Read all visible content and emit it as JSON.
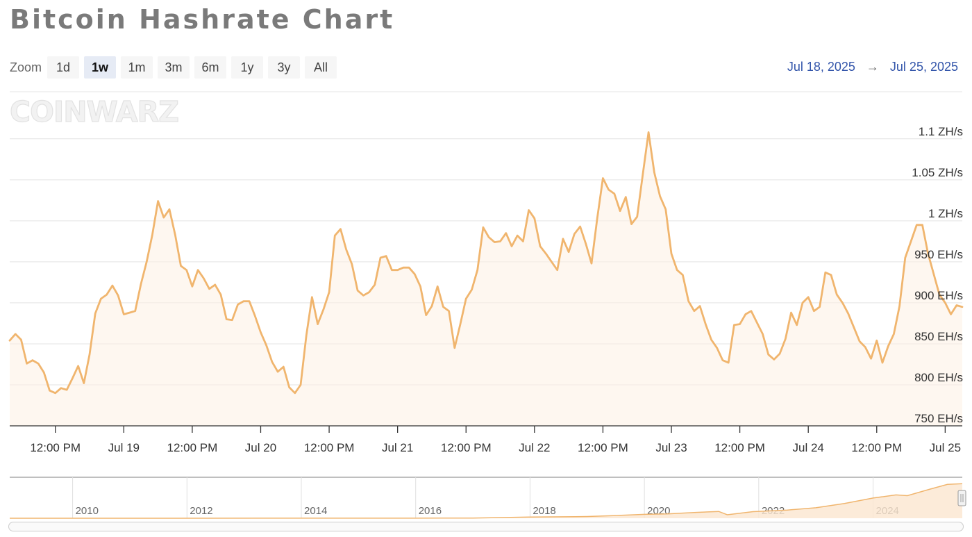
{
  "title": "Bitcoin Hashrate Chart",
  "zoom": {
    "label": "Zoom",
    "buttons": [
      "1d",
      "1w",
      "1m",
      "3m",
      "6m",
      "1y",
      "3y",
      "All"
    ],
    "active": "1w"
  },
  "range": {
    "from": "Jul 18, 2025",
    "arrow": "→",
    "to": "Jul 25, 2025"
  },
  "watermark": "COINWARZ",
  "colors": {
    "line": "#f0b56e",
    "fill": "#fdf0e3",
    "accent": "#3355aa"
  },
  "chart_data": {
    "type": "area",
    "title": "Bitcoin Hashrate Chart",
    "y_unit": "EH/s",
    "ylim": [
      750,
      1110
    ],
    "y_ticks": [
      {
        "value": 750,
        "label": "750 EH/s"
      },
      {
        "value": 800,
        "label": "800 EH/s"
      },
      {
        "value": 850,
        "label": "850 EH/s"
      },
      {
        "value": 900,
        "label": "900 EH/s"
      },
      {
        "value": 950,
        "label": "950 EH/s"
      },
      {
        "value": 1000,
        "label": "1 ZH/s"
      },
      {
        "value": 1050,
        "label": "1.05 ZH/s"
      },
      {
        "value": 1100,
        "label": "1.1 ZH/s"
      }
    ],
    "x_range": [
      "2025-07-18T04:00",
      "2025-07-25T03:00"
    ],
    "x_ticks": [
      {
        "t": "2025-07-18T12:00",
        "label": "12:00 PM"
      },
      {
        "t": "2025-07-19T00:00",
        "label": "Jul 19"
      },
      {
        "t": "2025-07-19T12:00",
        "label": "12:00 PM"
      },
      {
        "t": "2025-07-20T00:00",
        "label": "Jul 20"
      },
      {
        "t": "2025-07-20T12:00",
        "label": "12:00 PM"
      },
      {
        "t": "2025-07-21T00:00",
        "label": "Jul 21"
      },
      {
        "t": "2025-07-21T12:00",
        "label": "12:00 PM"
      },
      {
        "t": "2025-07-22T00:00",
        "label": "Jul 22"
      },
      {
        "t": "2025-07-22T12:00",
        "label": "12:00 PM"
      },
      {
        "t": "2025-07-23T00:00",
        "label": "Jul 23"
      },
      {
        "t": "2025-07-23T12:00",
        "label": "12:00 PM"
      },
      {
        "t": "2025-07-24T00:00",
        "label": "Jul 24"
      },
      {
        "t": "2025-07-24T12:00",
        "label": "12:00 PM"
      },
      {
        "t": "2025-07-25T00:00",
        "label": "Jul 25"
      }
    ],
    "series": [
      {
        "values": [
          [
            "2025-07-18T04:00",
            854
          ],
          [
            "2025-07-18T05:00",
            862
          ],
          [
            "2025-07-18T06:00",
            855
          ],
          [
            "2025-07-18T07:00",
            826
          ],
          [
            "2025-07-18T08:00",
            830
          ],
          [
            "2025-07-18T09:00",
            826
          ],
          [
            "2025-07-18T10:00",
            815
          ],
          [
            "2025-07-18T11:00",
            793
          ],
          [
            "2025-07-18T12:00",
            790
          ],
          [
            "2025-07-18T13:00",
            796
          ],
          [
            "2025-07-18T14:00",
            794
          ],
          [
            "2025-07-18T15:00",
            808
          ],
          [
            "2025-07-18T16:00",
            823
          ],
          [
            "2025-07-18T17:00",
            802
          ],
          [
            "2025-07-18T18:00",
            837
          ],
          [
            "2025-07-18T19:00",
            887
          ],
          [
            "2025-07-18T20:00",
            905
          ],
          [
            "2025-07-18T21:00",
            910
          ],
          [
            "2025-07-18T22:00",
            921
          ],
          [
            "2025-07-18T23:00",
            909
          ],
          [
            "2025-07-19T00:00",
            886
          ],
          [
            "2025-07-19T01:00",
            888
          ],
          [
            "2025-07-19T02:00",
            890
          ],
          [
            "2025-07-19T03:00",
            923
          ],
          [
            "2025-07-19T04:00",
            950
          ],
          [
            "2025-07-19T05:00",
            983
          ],
          [
            "2025-07-19T06:00",
            1024
          ],
          [
            "2025-07-19T07:00",
            1004
          ],
          [
            "2025-07-19T08:00",
            1014
          ],
          [
            "2025-07-19T09:00",
            983
          ],
          [
            "2025-07-19T10:00",
            945
          ],
          [
            "2025-07-19T11:00",
            940
          ],
          [
            "2025-07-19T12:00",
            920
          ],
          [
            "2025-07-19T13:00",
            940
          ],
          [
            "2025-07-19T14:00",
            930
          ],
          [
            "2025-07-19T15:00",
            917
          ],
          [
            "2025-07-19T16:00",
            922
          ],
          [
            "2025-07-19T17:00",
            910
          ],
          [
            "2025-07-19T18:00",
            880
          ],
          [
            "2025-07-19T19:00",
            879
          ],
          [
            "2025-07-19T20:00",
            898
          ],
          [
            "2025-07-19T21:00",
            902
          ],
          [
            "2025-07-19T22:00",
            902
          ],
          [
            "2025-07-19T23:00",
            884
          ],
          [
            "2025-07-20T00:00",
            864
          ],
          [
            "2025-07-20T01:00",
            848
          ],
          [
            "2025-07-20T02:00",
            828
          ],
          [
            "2025-07-20T03:00",
            816
          ],
          [
            "2025-07-20T04:00",
            822
          ],
          [
            "2025-07-20T05:00",
            797
          ],
          [
            "2025-07-20T06:00",
            790
          ],
          [
            "2025-07-20T07:00",
            800
          ],
          [
            "2025-07-20T08:00",
            860
          ],
          [
            "2025-07-20T09:00",
            907
          ],
          [
            "2025-07-20T10:00",
            874
          ],
          [
            "2025-07-20T11:00",
            892
          ],
          [
            "2025-07-20T12:00",
            913
          ],
          [
            "2025-07-20T13:00",
            982
          ],
          [
            "2025-07-20T14:00",
            990
          ],
          [
            "2025-07-20T15:00",
            965
          ],
          [
            "2025-07-20T16:00",
            947
          ],
          [
            "2025-07-20T17:00",
            915
          ],
          [
            "2025-07-20T18:00",
            909
          ],
          [
            "2025-07-20T19:00",
            913
          ],
          [
            "2025-07-20T20:00",
            922
          ],
          [
            "2025-07-20T21:00",
            955
          ],
          [
            "2025-07-20T22:00",
            957
          ],
          [
            "2025-07-20T23:00",
            940
          ],
          [
            "2025-07-21T00:00",
            940
          ],
          [
            "2025-07-21T01:00",
            943
          ],
          [
            "2025-07-21T02:00",
            943
          ],
          [
            "2025-07-21T03:00",
            935
          ],
          [
            "2025-07-21T04:00",
            920
          ],
          [
            "2025-07-21T05:00",
            885
          ],
          [
            "2025-07-21T06:00",
            896
          ],
          [
            "2025-07-21T07:00",
            920
          ],
          [
            "2025-07-21T08:00",
            895
          ],
          [
            "2025-07-21T09:00",
            890
          ],
          [
            "2025-07-21T10:00",
            845
          ],
          [
            "2025-07-21T11:00",
            874
          ],
          [
            "2025-07-21T12:00",
            905
          ],
          [
            "2025-07-21T13:00",
            916
          ],
          [
            "2025-07-21T14:00",
            940
          ],
          [
            "2025-07-21T15:00",
            992
          ],
          [
            "2025-07-21T16:00",
            980
          ],
          [
            "2025-07-21T17:00",
            974
          ],
          [
            "2025-07-21T18:00",
            975
          ],
          [
            "2025-07-21T19:00",
            985
          ],
          [
            "2025-07-21T20:00",
            969
          ],
          [
            "2025-07-21T21:00",
            982
          ],
          [
            "2025-07-21T22:00",
            975
          ],
          [
            "2025-07-21T23:00",
            1013
          ],
          [
            "2025-07-22T00:00",
            1003
          ],
          [
            "2025-07-22T01:00",
            969
          ],
          [
            "2025-07-22T02:00",
            960
          ],
          [
            "2025-07-22T03:00",
            950
          ],
          [
            "2025-07-22T04:00",
            940
          ],
          [
            "2025-07-22T05:00",
            978
          ],
          [
            "2025-07-22T06:00",
            962
          ],
          [
            "2025-07-22T07:00",
            984
          ],
          [
            "2025-07-22T08:00",
            993
          ],
          [
            "2025-07-22T09:00",
            972
          ],
          [
            "2025-07-22T10:00",
            948
          ],
          [
            "2025-07-22T11:00",
            1003
          ],
          [
            "2025-07-22T12:00",
            1052
          ],
          [
            "2025-07-22T13:00",
            1038
          ],
          [
            "2025-07-22T14:00",
            1033
          ],
          [
            "2025-07-22T15:00",
            1012
          ],
          [
            "2025-07-22T16:00",
            1029
          ],
          [
            "2025-07-22T17:00",
            996
          ],
          [
            "2025-07-22T18:00",
            1005
          ],
          [
            "2025-07-22T19:00",
            1057
          ],
          [
            "2025-07-22T20:00",
            1108
          ],
          [
            "2025-07-22T21:00",
            1059
          ],
          [
            "2025-07-22T22:00",
            1030
          ],
          [
            "2025-07-22T23:00",
            1014
          ],
          [
            "2025-07-23T00:00",
            960
          ],
          [
            "2025-07-23T01:00",
            940
          ],
          [
            "2025-07-23T02:00",
            934
          ],
          [
            "2025-07-23T03:00",
            902
          ],
          [
            "2025-07-23T04:00",
            890
          ],
          [
            "2025-07-23T05:00",
            896
          ],
          [
            "2025-07-23T06:00",
            874
          ],
          [
            "2025-07-23T07:00",
            855
          ],
          [
            "2025-07-23T08:00",
            845
          ],
          [
            "2025-07-23T09:00",
            830
          ],
          [
            "2025-07-23T10:00",
            827
          ],
          [
            "2025-07-23T11:00",
            873
          ],
          [
            "2025-07-23T12:00",
            874
          ],
          [
            "2025-07-23T13:00",
            886
          ],
          [
            "2025-07-23T14:00",
            890
          ],
          [
            "2025-07-23T15:00",
            876
          ],
          [
            "2025-07-23T16:00",
            862
          ],
          [
            "2025-07-23T17:00",
            837
          ],
          [
            "2025-07-23T18:00",
            831
          ],
          [
            "2025-07-23T19:00",
            838
          ],
          [
            "2025-07-23T20:00",
            856
          ],
          [
            "2025-07-23T21:00",
            888
          ],
          [
            "2025-07-23T22:00",
            873
          ],
          [
            "2025-07-23T23:00",
            900
          ],
          [
            "2025-07-24T00:00",
            907
          ],
          [
            "2025-07-24T01:00",
            890
          ],
          [
            "2025-07-24T02:00",
            895
          ],
          [
            "2025-07-24T03:00",
            937
          ],
          [
            "2025-07-24T04:00",
            934
          ],
          [
            "2025-07-24T05:00",
            910
          ],
          [
            "2025-07-24T06:00",
            900
          ],
          [
            "2025-07-24T07:00",
            887
          ],
          [
            "2025-07-24T08:00",
            870
          ],
          [
            "2025-07-24T09:00",
            853
          ],
          [
            "2025-07-24T10:00",
            846
          ],
          [
            "2025-07-24T11:00",
            832
          ],
          [
            "2025-07-24T12:00",
            854
          ],
          [
            "2025-07-24T13:00",
            827
          ],
          [
            "2025-07-24T14:00",
            847
          ],
          [
            "2025-07-24T15:00",
            862
          ],
          [
            "2025-07-24T16:00",
            896
          ],
          [
            "2025-07-24T17:00",
            955
          ],
          [
            "2025-07-24T18:00",
            975
          ],
          [
            "2025-07-24T19:00",
            995
          ],
          [
            "2025-07-24T20:00",
            995
          ],
          [
            "2025-07-24T21:00",
            960
          ],
          [
            "2025-07-24T22:00",
            935
          ],
          [
            "2025-07-24T23:00",
            910
          ],
          [
            "2025-07-25T00:00",
            900
          ],
          [
            "2025-07-25T01:00",
            886
          ],
          [
            "2025-07-25T02:00",
            897
          ],
          [
            "2025-07-25T03:00",
            895
          ]
        ]
      }
    ]
  },
  "navigator": {
    "xlim": [
      2008.9,
      2025.56
    ],
    "x_ticks": [
      {
        "value": 2010,
        "label": "2010"
      },
      {
        "value": 2012,
        "label": "2012"
      },
      {
        "value": 2014,
        "label": "2014"
      },
      {
        "value": 2016,
        "label": "2016"
      },
      {
        "value": 2018,
        "label": "2018"
      },
      {
        "value": 2020,
        "label": "2020"
      },
      {
        "value": 2022,
        "label": "2022"
      },
      {
        "value": 2024,
        "label": "2024"
      }
    ],
    "ylim": [
      0,
      1000
    ],
    "values": [
      [
        2008.9,
        0
      ],
      [
        2016.0,
        1
      ],
      [
        2017.0,
        6
      ],
      [
        2018.0,
        30
      ],
      [
        2018.8,
        40
      ],
      [
        2019.0,
        45
      ],
      [
        2019.5,
        70
      ],
      [
        2020.0,
        100
      ],
      [
        2020.4,
        110
      ],
      [
        2020.9,
        150
      ],
      [
        2021.3,
        175
      ],
      [
        2021.45,
        90
      ],
      [
        2021.9,
        170
      ],
      [
        2022.5,
        210
      ],
      [
        2023.0,
        270
      ],
      [
        2023.5,
        380
      ],
      [
        2024.0,
        520
      ],
      [
        2024.4,
        600
      ],
      [
        2024.6,
        580
      ],
      [
        2025.0,
        750
      ],
      [
        2025.3,
        870
      ],
      [
        2025.56,
        890
      ]
    ]
  }
}
